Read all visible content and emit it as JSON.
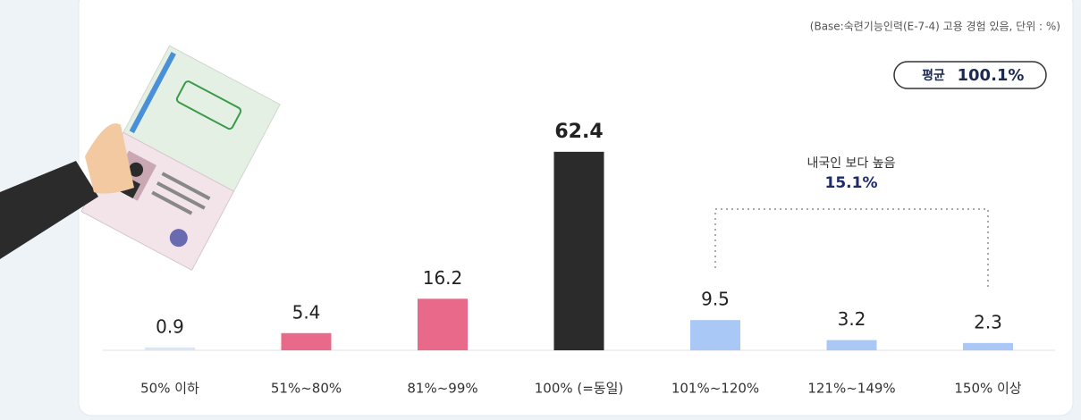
{
  "chart_data": {
    "type": "bar",
    "note": "(Base:숙련기능인력(E-7-4) 고용 경험 있음, 단위 : %)",
    "average": {
      "label": "평균",
      "value": "100.1%"
    },
    "annotation": {
      "text": "내국인 보다 높음",
      "value": "15.1%"
    },
    "categories": [
      "50% 이하",
      "51%~80%",
      "81%~99%",
      "100% (=동일)",
      "101%~120%",
      "121%~149%",
      "150% 이상"
    ],
    "values": [
      0.9,
      5.4,
      16.2,
      62.4,
      9.5,
      3.2,
      2.3
    ],
    "colors": [
      "#d8e6f8",
      "#e8698a",
      "#e8698a",
      "#2b2b2b",
      "#a9c8f5",
      "#a9c8f5",
      "#a9c8f5"
    ]
  }
}
